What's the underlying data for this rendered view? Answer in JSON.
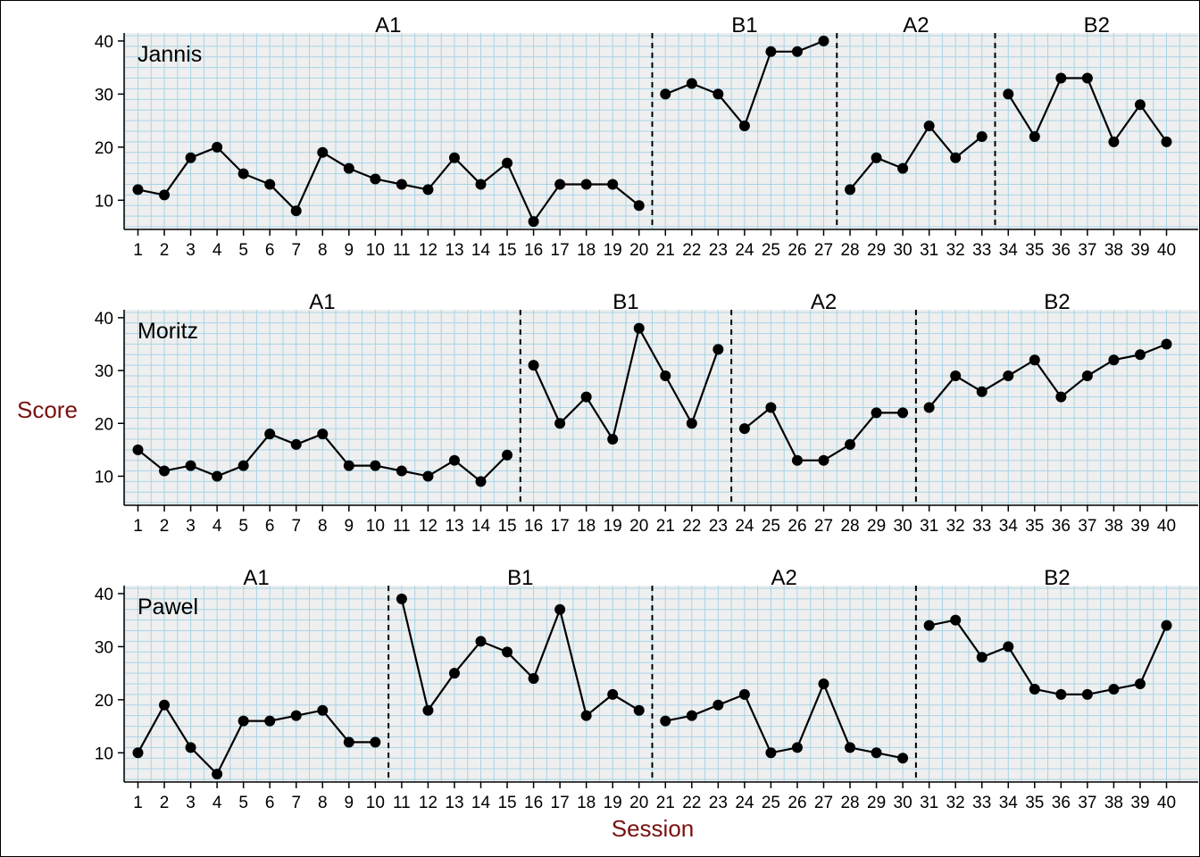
{
  "chart_data": {
    "type": "line",
    "xlabel": "Session",
    "ylabel": "Score",
    "ylim": [
      4.5,
      41.5
    ],
    "y_ticks": [
      10,
      20,
      30,
      40
    ],
    "x_range": [
      1,
      40
    ],
    "grid": true,
    "colors": {
      "panel_background": "#efefef",
      "grid_line": "#a8d4e6",
      "series": "#000000",
      "axis_title": "#7a1010"
    },
    "cases": [
      {
        "name": "Jannis",
        "phases": [
          {
            "label": "A1",
            "start": 1,
            "end": 20
          },
          {
            "label": "B1",
            "start": 21,
            "end": 27
          },
          {
            "label": "A2",
            "start": 28,
            "end": 33
          },
          {
            "label": "B2",
            "start": 34,
            "end": 40
          }
        ],
        "values": [
          12,
          11,
          18,
          20,
          15,
          13,
          8,
          19,
          16,
          14,
          13,
          12,
          18,
          13,
          17,
          6,
          13,
          13,
          13,
          9,
          30,
          32,
          30,
          24,
          38,
          38,
          40,
          12,
          18,
          16,
          24,
          18,
          22,
          30,
          22,
          33,
          33,
          21,
          28,
          21
        ]
      },
      {
        "name": "Moritz",
        "phases": [
          {
            "label": "A1",
            "start": 1,
            "end": 15
          },
          {
            "label": "B1",
            "start": 16,
            "end": 23
          },
          {
            "label": "A2",
            "start": 24,
            "end": 30
          },
          {
            "label": "B2",
            "start": 31,
            "end": 40
          }
        ],
        "values": [
          15,
          11,
          12,
          10,
          12,
          18,
          16,
          18,
          12,
          12,
          11,
          10,
          13,
          9,
          14,
          31,
          20,
          25,
          17,
          38,
          29,
          20,
          34,
          19,
          23,
          13,
          13,
          16,
          22,
          22,
          23,
          29,
          26,
          29,
          32,
          25,
          29,
          32,
          33,
          35
        ]
      },
      {
        "name": "Pawel",
        "phases": [
          {
            "label": "A1",
            "start": 1,
            "end": 10
          },
          {
            "label": "B1",
            "start": 11,
            "end": 20
          },
          {
            "label": "A2",
            "start": 21,
            "end": 30
          },
          {
            "label": "B2",
            "start": 31,
            "end": 40
          }
        ],
        "values": [
          10,
          19,
          11,
          6,
          16,
          16,
          17,
          18,
          12,
          12,
          39,
          18,
          25,
          31,
          29,
          24,
          37,
          17,
          21,
          18,
          16,
          17,
          19,
          21,
          10,
          11,
          23,
          11,
          10,
          9,
          34,
          35,
          28,
          30,
          22,
          21,
          21,
          22,
          23,
          34
        ]
      }
    ]
  }
}
